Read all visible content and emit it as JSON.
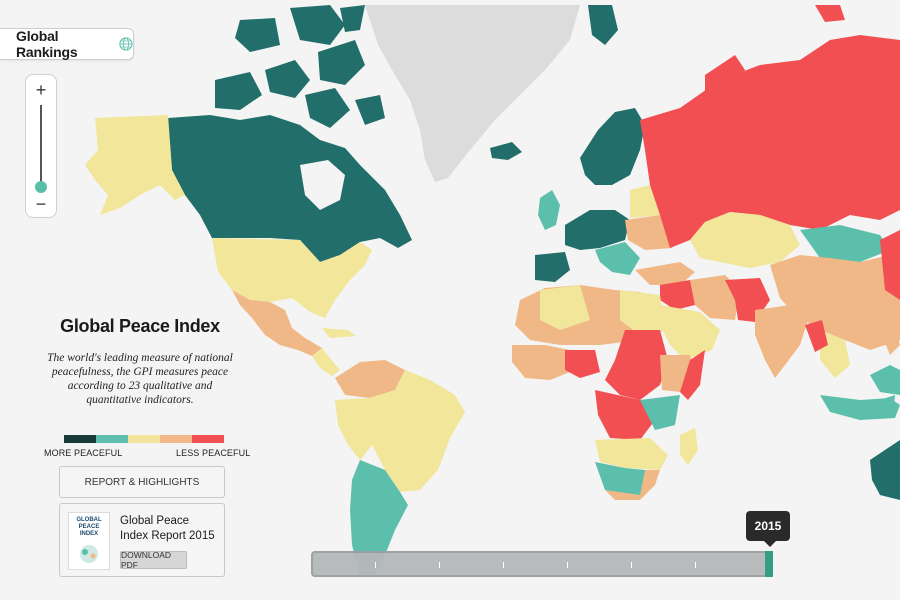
{
  "header": {
    "rankings_label": "Global Rankings"
  },
  "zoom": {
    "plus": "+",
    "minus": "−"
  },
  "info": {
    "title": "Global Peace Index",
    "description": "The world's leading measure of national peacefulness, the GPI measures peace according to 23 qualitative and quantitative indicators."
  },
  "legend": {
    "more_label": "MORE PEACEFUL",
    "less_label": "LESS PEACEFUL",
    "colors": [
      "#17393a",
      "#5bbfab",
      "#f2e59b",
      "#f2b887",
      "#f24f52"
    ]
  },
  "report": {
    "highlights_label": "REPORT & HIGHLIGHTS",
    "title": "Global Peace Index Report 2015",
    "thumb_text": "GLOBAL PEACE INDEX",
    "download_label": "DOWNLOAD PDF"
  },
  "timeline": {
    "year": "2015"
  },
  "map_colors": {
    "ocean": "#f4f4f4",
    "greenland": "#dcdcdc",
    "dark_teal": "#226e6b",
    "teal": "#5bbfab",
    "yellow": "#f1e69a",
    "orange": "#f1b887",
    "red": "#f24f52"
  }
}
